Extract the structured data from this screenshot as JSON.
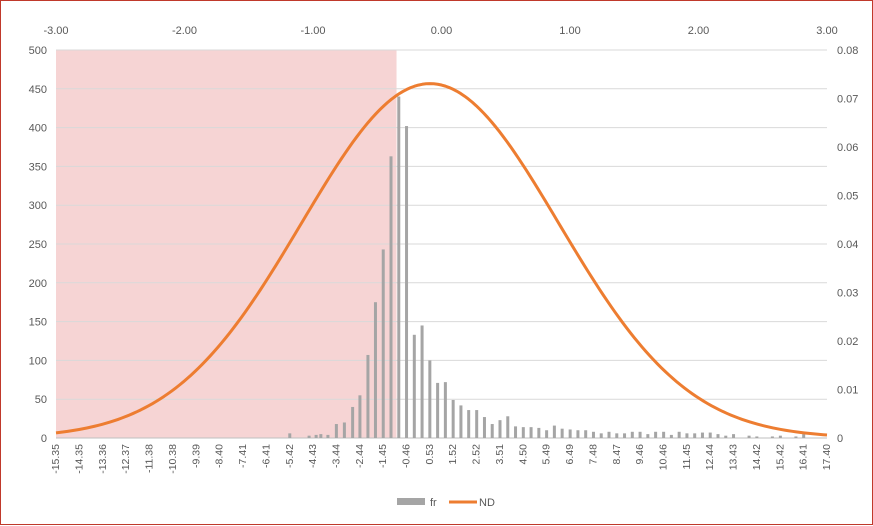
{
  "chart_data": {
    "type": "bar",
    "highlight_region": {
      "x_from": -3.0,
      "x_to": -0.35,
      "color": "#f4cccc"
    },
    "top_axis": {
      "ticks": [
        -3,
        -2,
        -1,
        0,
        1,
        2,
        3
      ],
      "labels": [
        "-3.00",
        "-2.00",
        "-1.00",
        "0.00",
        "1.00",
        "2.00",
        "3.00"
      ],
      "range": [
        -3,
        3
      ]
    },
    "left_axis": {
      "ticks": [
        0,
        50,
        100,
        150,
        200,
        250,
        300,
        350,
        400,
        450,
        500
      ],
      "labels": [
        "0",
        "50",
        "100",
        "150",
        "200",
        "250",
        "300",
        "350",
        "400",
        "450",
        "500"
      ],
      "range": [
        0,
        500
      ]
    },
    "right_axis": {
      "ticks": [
        0,
        0.01,
        0.02,
        0.03,
        0.04,
        0.05,
        0.06,
        0.07,
        0.08
      ],
      "labels": [
        "0",
        "0.01",
        "0.02",
        "0.03",
        "0.04",
        "0.05",
        "0.06",
        "0.07",
        "0.08"
      ],
      "range": [
        0,
        0.08
      ]
    },
    "category_axis": {
      "range": [
        -15.35,
        17.4
      ],
      "labels": [
        "-15.35",
        "-14.35",
        "-13.36",
        "-12.37",
        "-11.38",
        "-10.38",
        "-9.39",
        "-8.40",
        "-7.41",
        "-6.41",
        "-5.42",
        "-4.43",
        "-3.44",
        "-2.44",
        "-1.45",
        "-0.46",
        "0.53",
        "1.52",
        "2.52",
        "3.51",
        "4.50",
        "5.49",
        "6.49",
        "7.48",
        "8.47",
        "9.46",
        "10.46",
        "11.45",
        "12.44",
        "13.43",
        "14.42",
        "15.42",
        "16.41",
        "17.40"
      ]
    },
    "series": [
      {
        "name": "fr",
        "kind": "bar",
        "axis": "left",
        "color": "#a5a5a5",
        "x": [
          -5.42,
          -4.6,
          -4.3,
          -4.1,
          -3.8,
          -3.44,
          -3.1,
          -2.75,
          -2.44,
          -2.1,
          -1.78,
          -1.45,
          -1.12,
          -0.79,
          -0.46,
          -0.13,
          0.2,
          0.53,
          0.86,
          1.19,
          1.52,
          1.85,
          2.18,
          2.52,
          2.85,
          3.18,
          3.51,
          3.84,
          4.17,
          4.5,
          4.83,
          5.16,
          5.49,
          5.82,
          6.15,
          6.49,
          6.82,
          7.15,
          7.48,
          7.81,
          8.14,
          8.47,
          8.8,
          9.13,
          9.46,
          9.79,
          10.12,
          10.46,
          10.79,
          11.12,
          11.45,
          11.78,
          12.11,
          12.44,
          12.77,
          13.1,
          13.43,
          14.09,
          14.42,
          15.08,
          15.42,
          16.08,
          16.41
        ],
        "values": [
          6,
          3,
          4,
          5,
          4,
          18,
          20,
          40,
          55,
          107,
          175,
          243,
          363,
          440,
          402,
          133,
          145,
          100,
          71,
          72,
          49,
          42,
          36,
          36,
          27,
          18,
          23,
          28,
          15,
          14,
          14,
          13,
          10,
          16,
          12,
          11,
          10,
          10,
          8,
          6,
          8,
          6,
          6,
          8,
          8,
          5,
          8,
          8,
          4,
          8,
          6,
          6,
          7,
          7,
          5,
          3,
          5,
          3,
          2,
          2,
          3,
          2,
          5
        ]
      },
      {
        "name": "ND",
        "kind": "line",
        "axis": "right",
        "color": "#ed7d31",
        "function": "normal_pdf",
        "params": {
          "mean": 0.54,
          "sd": 5.46
        },
        "x_range": [
          -15.35,
          17.4
        ]
      }
    ],
    "legend": {
      "position": "bottom",
      "items": [
        "fr",
        "ND"
      ]
    },
    "gridlines": true
  }
}
